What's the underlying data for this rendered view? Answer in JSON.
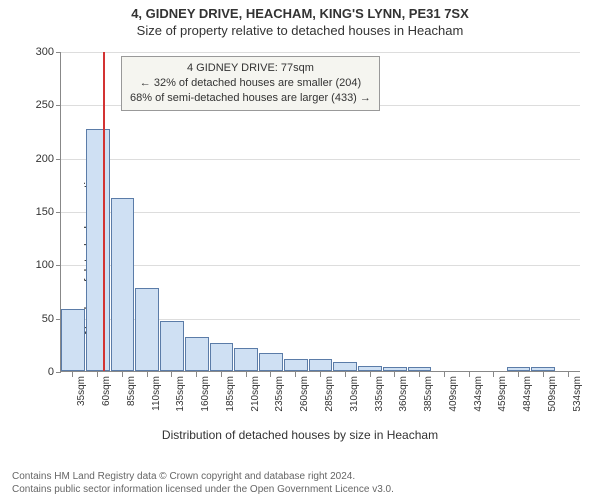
{
  "title_line1": "4, GIDNEY DRIVE, HEACHAM, KING'S LYNN, PE31 7SX",
  "title_line2": "Size of property relative to detached houses in Heacham",
  "chart": {
    "type": "histogram",
    "ylabel": "Number of detached properties",
    "xlabel": "Distribution of detached houses by size in Heacham",
    "ylim": [
      0,
      300
    ],
    "yticks": [
      0,
      50,
      100,
      150,
      200,
      250,
      300
    ],
    "xticks": [
      "35sqm",
      "60sqm",
      "85sqm",
      "110sqm",
      "135sqm",
      "160sqm",
      "185sqm",
      "210sqm",
      "235sqm",
      "260sqm",
      "285sqm",
      "310sqm",
      "335sqm",
      "360sqm",
      "385sqm",
      "409sqm",
      "434sqm",
      "459sqm",
      "484sqm",
      "509sqm",
      "534sqm"
    ],
    "bar_fill": "#cfe0f3",
    "bar_stroke": "#5b7ca8",
    "grid_color": "#dddddd",
    "axis_color": "#888888",
    "background": "#ffffff",
    "title_fontsize": 13,
    "label_fontsize": 12,
    "tick_fontsize": 11,
    "values": [
      58,
      227,
      162,
      78,
      47,
      32,
      26,
      22,
      17,
      11,
      11,
      8,
      5,
      4,
      4,
      0,
      0,
      0,
      4,
      4,
      0
    ],
    "highlight_value": 77,
    "highlight_color": "#d33333",
    "x_start": 35,
    "x_step": 25,
    "annotation": {
      "line1": "4 GIDNEY DRIVE: 77sqm",
      "line2": "← 32% of detached houses are smaller (204)",
      "line3": "68% of semi-detached houses are larger (433) →",
      "bg": "#f5f5f0",
      "border": "#999999"
    }
  },
  "footer": {
    "line1": "Contains HM Land Registry data © Crown copyright and database right 2024.",
    "line2": "Contains public sector information licensed under the Open Government Licence v3.0."
  }
}
